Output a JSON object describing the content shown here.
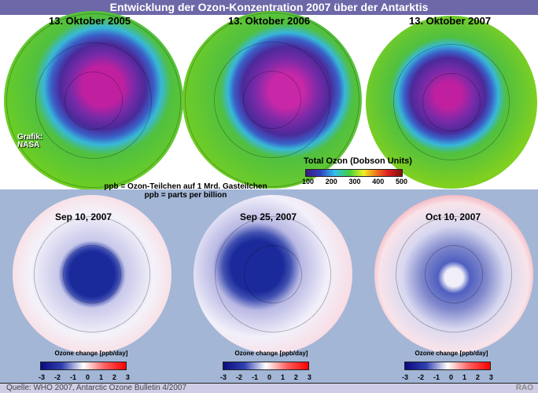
{
  "title": "Entwicklung der Ozon-Konzentration 2007 über der Antarktis",
  "top": {
    "dates": [
      "13. Oktober 2005",
      "13. Oktober 2006",
      "13. Oktober 2007"
    ],
    "credit": [
      "Grafik:",
      "NASA"
    ],
    "legend_title": "Total Ozon (Dobson Units)",
    "legend_ticks": [
      "100",
      "200",
      "300",
      "400",
      "500"
    ]
  },
  "ppb_notes": [
    "ppb = Ozon-Teilchen auf 1 Mrd. Gasteilchen",
    "ppb = parts per billion"
  ],
  "bottom": {
    "dates": [
      "Sep 10, 2007",
      "Sep 25, 2007",
      "Oct 10, 2007"
    ],
    "legend_title": "Ozone change [ppb/day]",
    "legend_ticks": [
      "-3",
      "-2",
      "-1",
      "0",
      "1",
      "2",
      "3"
    ]
  },
  "footer": {
    "source": "Quelle: WHO 2007, Antarctic Ozone Bulletin 4/2007",
    "logo": "RAO"
  }
}
